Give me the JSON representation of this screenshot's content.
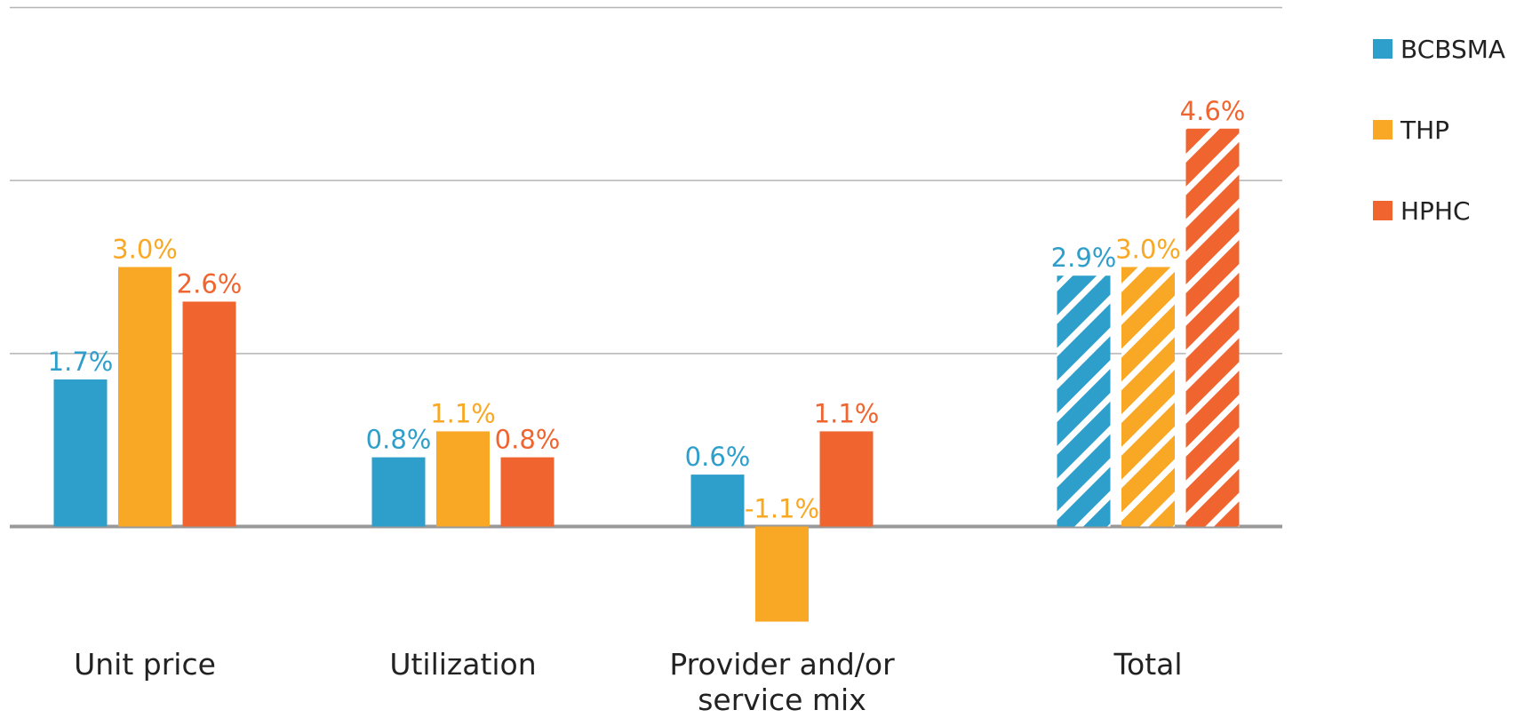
{
  "chart_data": {
    "type": "bar",
    "categories": [
      "Unit price",
      "Utilization",
      "Provider and/or service mix",
      "Total"
    ],
    "series": [
      {
        "name": "BCBSMA",
        "color": "#2e9fcb",
        "values": [
          1.7,
          0.8,
          0.6,
          2.9
        ],
        "value_labels": [
          "1.7%",
          "0.8%",
          "0.6%",
          "2.9%"
        ]
      },
      {
        "name": "THP",
        "color": "#f9a825",
        "values": [
          3.0,
          1.1,
          -1.1,
          3.0
        ],
        "value_labels": [
          "3.0%",
          "1.1%",
          "-1.1%",
          "3.0%"
        ]
      },
      {
        "name": "HPHC",
        "color": "#f0652f",
        "values": [
          2.6,
          0.8,
          1.1,
          4.6
        ],
        "value_labels": [
          "2.6%",
          "0.8%",
          "1.1%",
          "4.6%"
        ]
      }
    ],
    "hatched": [
      false,
      false,
      false,
      true
    ],
    "ylim": [
      -1.5,
      6
    ],
    "yticks": [
      0,
      2,
      4,
      6
    ],
    "grid": true,
    "legend": "right"
  }
}
